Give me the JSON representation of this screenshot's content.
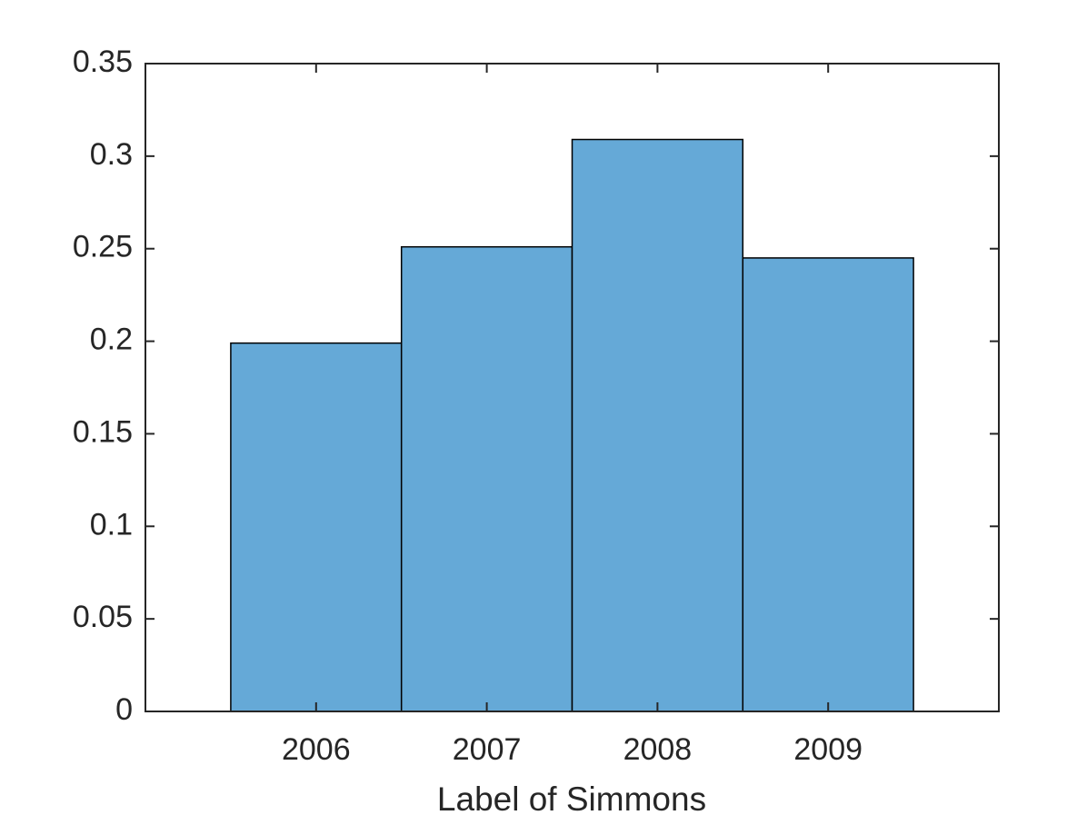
{
  "chart_data": {
    "type": "histogram",
    "x_label": "Label of Simmons",
    "bins": [
      2005.5,
      2006.5,
      2007.5,
      2008.5,
      2009.5
    ],
    "values": [
      0.199,
      0.251,
      0.309,
      0.245
    ],
    "color": "#65a9d7",
    "edge_color": "#000000",
    "xlim": [
      2005,
      2010
    ],
    "xticks": [
      2006,
      2007,
      2008,
      2009
    ],
    "ylim": [
      0,
      0.35
    ],
    "yticks": [
      0,
      0.05,
      0.1,
      0.15,
      0.2,
      0.25,
      0.3,
      0.35
    ],
    "grid": false
  }
}
